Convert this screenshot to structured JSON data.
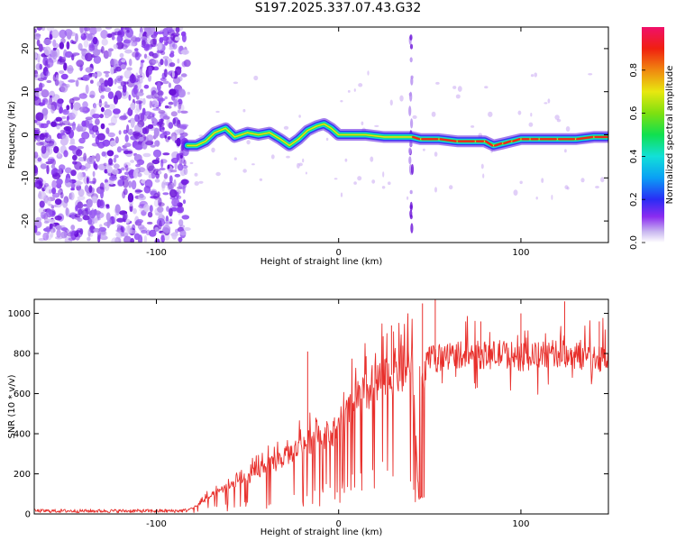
{
  "figure_title": "S197.2025.337.07.43.G32",
  "colors": {
    "signal_line": "#e8302c",
    "frame": "#000000",
    "scatter_dark": "#6a12d8",
    "scatter_light": "#c8a8f2"
  },
  "chart_data": [
    {
      "type": "heatmap",
      "name": "spectrogram",
      "xlabel": "Height of straight line (km)",
      "ylabel": "Frequency (Hz)",
      "xlim": [
        -167,
        148
      ],
      "ylim": [
        -25,
        25
      ],
      "xticks": [
        -100,
        0,
        100
      ],
      "xtick_labels": [
        "-100",
        "0",
        "100"
      ],
      "yticks": [
        -20,
        -10,
        0,
        10,
        20
      ],
      "ytick_labels": [
        "-20",
        "-10",
        "0",
        "10",
        "20"
      ],
      "noise_region_x": [
        -167,
        -83
      ],
      "ridge": {
        "x": [
          -83,
          -78,
          -73,
          -68,
          -62,
          -57,
          -50,
          -44,
          -38,
          -32,
          -27,
          -22,
          -17,
          -12,
          -8,
          -4,
          0,
          8,
          15,
          25,
          35,
          40,
          45,
          55,
          65,
          75,
          80,
          85,
          90,
          95,
          100,
          105,
          110,
          120,
          130,
          140,
          148
        ],
        "y": [
          -2.5,
          -2.5,
          -1.5,
          0.5,
          1.5,
          -0.5,
          0.5,
          0,
          0.5,
          -1,
          -2.5,
          -1,
          1,
          2,
          2.5,
          1.5,
          0,
          0,
          0,
          -0.5,
          -0.5,
          -0.5,
          -1,
          -1,
          -1.5,
          -1.5,
          -1.5,
          -2.5,
          -2,
          -1.5,
          -1,
          -1,
          -1,
          -1,
          -1,
          -0.5,
          -0.5
        ]
      },
      "colorbar": {
        "label": "Normalized spectral amplitude",
        "range": [
          0,
          1
        ],
        "ticks": [
          0.0,
          0.2,
          0.4,
          0.6,
          0.8
        ],
        "tick_labels": [
          "0.0",
          "0.2",
          "0.4",
          "0.6",
          "0.8"
        ]
      }
    },
    {
      "type": "line",
      "name": "snr",
      "xlabel": "Height of straight line (km)",
      "ylabel": "SNR (10 * v/v)",
      "xlim": [
        -167,
        148
      ],
      "ylim": [
        0,
        1070
      ],
      "xticks": [
        -100,
        0,
        100
      ],
      "xtick_labels": [
        "-100",
        "0",
        "100"
      ],
      "yticks": [
        0,
        200,
        400,
        600,
        800,
        1000
      ],
      "ytick_labels": [
        "0",
        "200",
        "400",
        "600",
        "800",
        "1000"
      ],
      "series": [
        {
          "name": "SNR",
          "envelope_x": [
            -167,
            -90,
            -83,
            -78,
            -72,
            -66,
            -60,
            -54,
            -48,
            -42,
            -36,
            -30,
            -24,
            -18,
            -12,
            -6,
            0,
            6,
            12,
            18,
            24,
            30,
            36,
            40,
            44,
            46,
            48,
            52,
            56,
            60,
            70,
            80,
            90,
            100,
            110,
            120,
            130,
            140,
            148
          ],
          "envelope_y": [
            15,
            15,
            18,
            40,
            80,
            110,
            140,
            160,
            190,
            220,
            250,
            280,
            320,
            350,
            380,
            400,
            420,
            520,
            580,
            620,
            660,
            700,
            720,
            740,
            80,
            80,
            760,
            770,
            780,
            790,
            800,
            790,
            800,
            780,
            790,
            800,
            790,
            780,
            780
          ],
          "spikes": [
            {
              "x": -17,
              "y": 810
            },
            {
              "x": 29,
              "y": 940
            },
            {
              "x": 38,
              "y": 1000
            },
            {
              "x": 46,
              "y": 1050
            },
            {
              "x": 53,
              "y": 1070
            },
            {
              "x": 78,
              "y": 960
            },
            {
              "x": 100,
              "y": 1000
            },
            {
              "x": 124,
              "y": 1060
            },
            {
              "x": 143,
              "y": 960
            }
          ]
        }
      ]
    }
  ]
}
